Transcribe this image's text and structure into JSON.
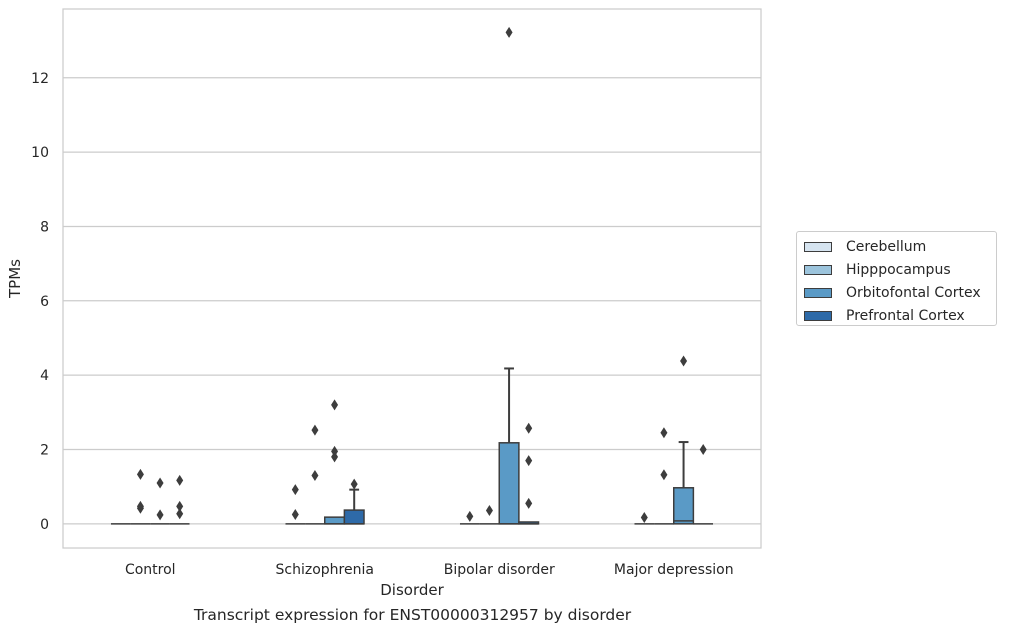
{
  "chart_data": {
    "type": "box",
    "title": "Transcript expression for ENST00000312957 by disorder",
    "xlabel": "Disorder",
    "ylabel": "TPMs",
    "ylim": [
      -0.65,
      13.85
    ],
    "yticks": [
      0,
      2,
      4,
      6,
      8,
      10,
      12
    ],
    "ytick_labels": [
      "0",
      "2",
      "4",
      "6",
      "8",
      "10",
      "12"
    ],
    "grid": true,
    "legend_position": "right",
    "categories": [
      "Control",
      "Schizophrenia",
      "Bipolar disorder",
      "Major depression"
    ],
    "series": [
      {
        "name": "Cerebellum",
        "color": "#d6e4f0",
        "boxes": [
          {
            "q1": 0,
            "median": 0,
            "q3": 0,
            "whisker_low": 0,
            "whisker_high": 0,
            "outliers": []
          },
          {
            "q1": 0,
            "median": 0,
            "q3": 0,
            "whisker_low": 0,
            "whisker_high": 0,
            "outliers": [
              0.25,
              0.92
            ]
          },
          {
            "q1": 0,
            "median": 0,
            "q3": 0,
            "whisker_low": 0,
            "whisker_high": 0,
            "outliers": [
              0.2
            ]
          },
          {
            "q1": 0,
            "median": 0,
            "q3": 0,
            "whisker_low": 0,
            "whisker_high": 0,
            "outliers": [
              0.17
            ]
          }
        ]
      },
      {
        "name": "Hipppocampus",
        "color": "#9cc4dc",
        "boxes": [
          {
            "q1": 0,
            "median": 0,
            "q3": 0,
            "whisker_low": 0,
            "whisker_high": 0,
            "outliers": [
              0.42,
              0.47,
              1.33
            ]
          },
          {
            "q1": 0,
            "median": 0,
            "q3": 0,
            "whisker_low": 0,
            "whisker_high": 0,
            "outliers": [
              1.3,
              2.52
            ]
          },
          {
            "q1": 0,
            "median": 0,
            "q3": 0,
            "whisker_low": 0,
            "whisker_high": 0,
            "outliers": [
              0.36
            ]
          },
          {
            "q1": 0,
            "median": 0,
            "q3": 0,
            "whisker_low": 0,
            "whisker_high": 0,
            "outliers": [
              1.32,
              2.45
            ]
          }
        ]
      },
      {
        "name": "Orbitofontal Cortex",
        "color": "#5a9ac6",
        "boxes": [
          {
            "q1": 0,
            "median": 0,
            "q3": 0,
            "whisker_low": 0,
            "whisker_high": 0,
            "outliers": [
              0.24,
              1.1
            ]
          },
          {
            "q1": 0,
            "median": 0,
            "q3": 0.18,
            "whisker_low": 0,
            "whisker_high": 0.18,
            "outliers": [
              1.8,
              1.95,
              3.2
            ]
          },
          {
            "q1": 0,
            "median": 0,
            "q3": 2.18,
            "whisker_low": 0,
            "whisker_high": 4.18,
            "outliers": [
              13.22
            ]
          },
          {
            "q1": 0,
            "median": 0.08,
            "q3": 0.97,
            "whisker_low": 0,
            "whisker_high": 2.2,
            "outliers": [
              4.38
            ]
          }
        ]
      },
      {
        "name": "Prefrontal Cortex",
        "color": "#2e6aa8",
        "boxes": [
          {
            "q1": 0,
            "median": 0,
            "q3": 0,
            "whisker_low": 0,
            "whisker_high": 0,
            "outliers": [
              0.27,
              0.47,
              1.17
            ]
          },
          {
            "q1": 0,
            "median": 0,
            "q3": 0.37,
            "whisker_low": 0,
            "whisker_high": 0.92,
            "outliers": [
              1.07
            ]
          },
          {
            "q1": 0,
            "median": 0,
            "q3": 0.05,
            "whisker_low": 0,
            "whisker_high": 0.05,
            "outliers": [
              0.55,
              1.7,
              2.57
            ]
          },
          {
            "q1": 0,
            "median": 0,
            "q3": 0,
            "whisker_low": 0,
            "whisker_high": 0,
            "outliers": [
              2.0
            ]
          }
        ]
      }
    ]
  }
}
